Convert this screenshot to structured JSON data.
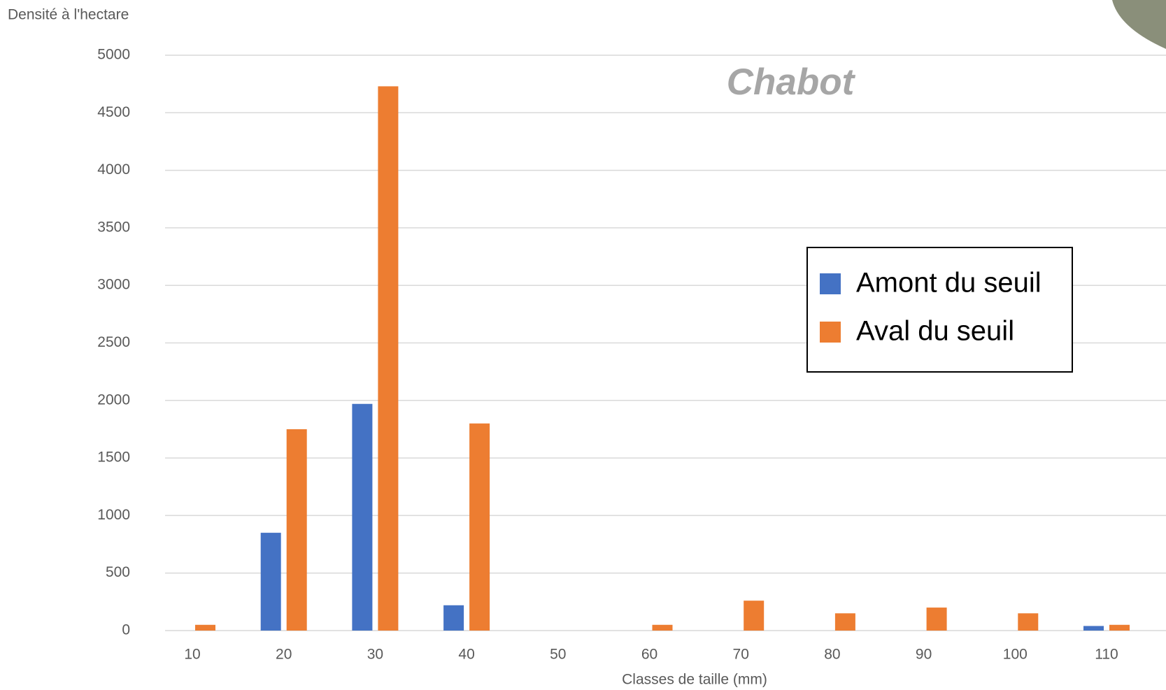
{
  "chart_data": {
    "type": "bar",
    "title": "Chabot",
    "y_label": "Densité à l'hectare",
    "x_label": "Classes de taille (mm)",
    "categories": [
      "10",
      "20",
      "30",
      "40",
      "50",
      "60",
      "70",
      "80",
      "90",
      "100",
      "110"
    ],
    "series": [
      {
        "name": "Amont du seuil",
        "color": "#4472c4",
        "values": [
          0,
          850,
          1970,
          220,
          0,
          0,
          0,
          0,
          0,
          0,
          40
        ]
      },
      {
        "name": "Aval du seuil",
        "color": "#ed7d31",
        "values": [
          50,
          1750,
          4730,
          1800,
          0,
          50,
          260,
          150,
          200,
          150,
          50
        ]
      }
    ],
    "ylim": [
      0,
      5000
    ],
    "yticks": [
      0,
      500,
      1000,
      1500,
      2000,
      2500,
      3000,
      3500,
      4000,
      4500,
      5000
    ],
    "grid": true,
    "legend": "right"
  }
}
